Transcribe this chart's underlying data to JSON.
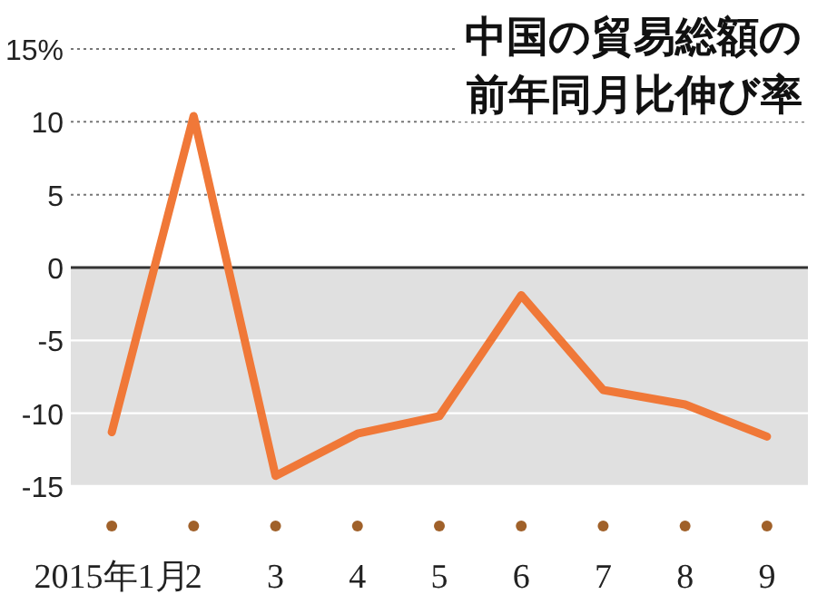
{
  "chart_data": {
    "type": "line",
    "title": "中国の貿易総額の前年同月比伸び率",
    "categories": [
      "2015年1月",
      "2",
      "3",
      "4",
      "5",
      "6",
      "7",
      "8",
      "9"
    ],
    "series": [
      {
        "color": "#f07838",
        "values": [
          -11.3,
          10.4,
          -14.3,
          -11.4,
          -10.2,
          -1.9,
          -8.4,
          -9.4,
          -11.6
        ]
      }
    ],
    "ylim": [
      -15,
      15
    ],
    "yticks": [
      {
        "value": 15,
        "label": "15%"
      },
      10,
      5,
      0,
      -5,
      -10,
      -15
    ],
    "grid": "y",
    "bands": [
      {
        "axis": "y",
        "from": 0,
        "to": -15,
        "color": "#e0e0e0"
      }
    ],
    "ref_lines": [
      {
        "axis": "y",
        "value": 0,
        "color": "#333333"
      }
    ],
    "line_style": "solid"
  }
}
